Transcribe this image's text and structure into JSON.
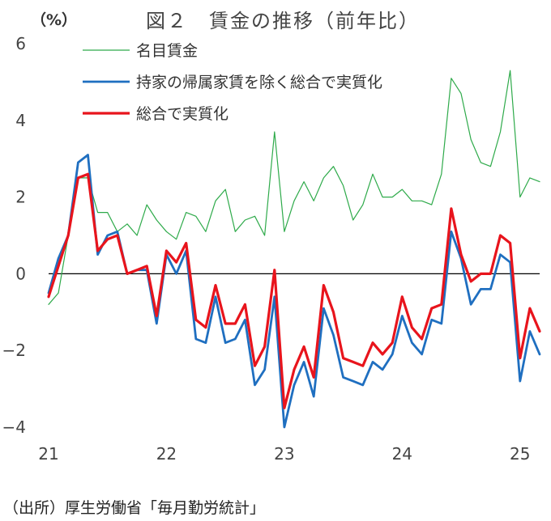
{
  "chart_data": {
    "type": "line",
    "title": "図２　賃金の推移（前年比）",
    "unit_label": "（%）",
    "source": "（出所）厚生労働省「毎月勤労統計」",
    "ylim": [
      -4,
      6
    ],
    "yticks": [
      -4,
      -2,
      0,
      2,
      4,
      6
    ],
    "ytick_labels": [
      "−4",
      "−2",
      "0",
      "2",
      "4",
      "6"
    ],
    "xlim": [
      0,
      50
    ],
    "xticks": [
      0,
      12,
      24,
      36,
      48
    ],
    "xtick_labels": [
      "21",
      "22",
      "23",
      "24",
      "25"
    ],
    "legend_position": "top-left",
    "series": [
      {
        "name": "名目賃金",
        "color": "#2eaa4a",
        "values": [
          -0.8,
          -0.5,
          1.0,
          2.5,
          2.5,
          1.6,
          1.6,
          1.1,
          1.3,
          1.0,
          1.8,
          1.4,
          1.1,
          0.9,
          1.6,
          1.5,
          1.1,
          1.9,
          2.2,
          1.1,
          1.4,
          1.5,
          1.0,
          3.7,
          1.1,
          1.9,
          2.4,
          1.9,
          2.5,
          2.8,
          2.3,
          1.4,
          1.8,
          2.6,
          2.0,
          2.0,
          2.2,
          1.9,
          1.9,
          1.8,
          2.6,
          5.1,
          4.7,
          3.5,
          2.9,
          2.8,
          3.7,
          5.3,
          2.0,
          2.5,
          2.4
        ]
      },
      {
        "name": "持家の帰属家賃を除く総合で実質化",
        "color": "#1f6fc0",
        "values": [
          -0.5,
          0.4,
          1.0,
          2.9,
          3.1,
          0.5,
          1.0,
          1.1,
          0.0,
          0.1,
          0.1,
          -1.3,
          0.5,
          0.0,
          0.6,
          -1.7,
          -1.8,
          -0.6,
          -1.8,
          -1.7,
          -1.2,
          -2.9,
          -2.5,
          -0.6,
          -4.0,
          -2.9,
          -2.3,
          -3.2,
          -0.9,
          -1.6,
          -2.7,
          -2.8,
          -2.9,
          -2.3,
          -2.5,
          -2.1,
          -1.1,
          -1.8,
          -2.1,
          -1.2,
          -1.3,
          1.1,
          0.4,
          -0.8,
          -0.4,
          -0.4,
          0.5,
          0.3,
          -2.8,
          -1.5,
          -2.1
        ]
      },
      {
        "name": "総合で実質化",
        "color": "#e8141c",
        "values": [
          -0.6,
          0.2,
          1.0,
          2.5,
          2.6,
          0.6,
          0.9,
          1.0,
          0.0,
          0.1,
          0.2,
          -1.1,
          0.6,
          0.3,
          0.8,
          -1.2,
          -1.4,
          -0.3,
          -1.3,
          -1.3,
          -0.8,
          -2.4,
          -1.9,
          0.1,
          -3.5,
          -2.5,
          -1.9,
          -2.7,
          -0.3,
          -1.0,
          -2.2,
          -2.3,
          -2.4,
          -1.8,
          -2.1,
          -1.8,
          -0.6,
          -1.4,
          -1.7,
          -0.9,
          -0.8,
          1.7,
          0.5,
          -0.2,
          0.0,
          0.0,
          1.0,
          0.8,
          -2.2,
          -0.9,
          -1.5
        ]
      }
    ]
  }
}
